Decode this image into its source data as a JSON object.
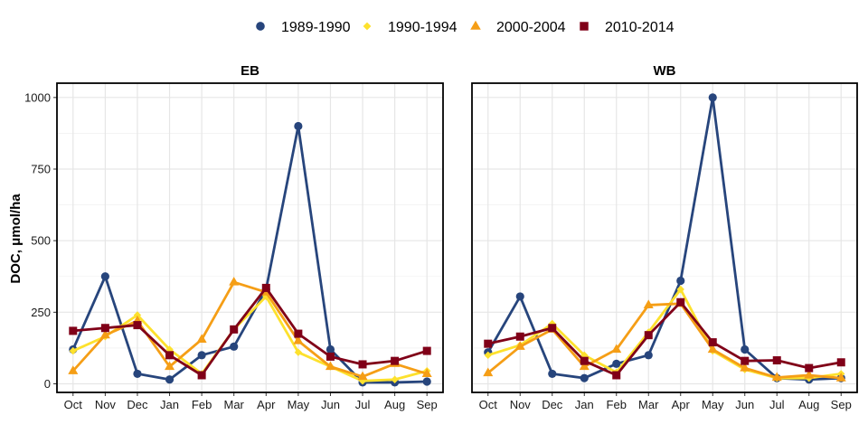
{
  "chart_data": {
    "type": "line",
    "ylabel": "DOC, μmol/ha",
    "xlabel": "",
    "categories": [
      "Oct",
      "Nov",
      "Dec",
      "Jan",
      "Feb",
      "Mar",
      "Apr",
      "May",
      "Jun",
      "Jul",
      "Aug",
      "Sep"
    ],
    "ylim": [
      -30,
      1050
    ],
    "yticks": [
      0,
      250,
      500,
      750,
      1000
    ],
    "grid": true,
    "legend_position": "top",
    "legend": [
      {
        "name": "1989-1990",
        "color": "#27457c",
        "marker": "circle"
      },
      {
        "name": "1990-1994",
        "color": "#fde12d",
        "marker": "diamond"
      },
      {
        "name": "2000-2004",
        "color": "#f59e16",
        "marker": "triangle"
      },
      {
        "name": "2010-2014",
        "color": "#800018",
        "marker": "square"
      }
    ],
    "panels": [
      {
        "title": "EB",
        "series": [
          {
            "name": "1989-1990",
            "values": [
              120,
              375,
              35,
              15,
              100,
              130,
              330,
              900,
              120,
              5,
              5,
              8
            ]
          },
          {
            "name": "1990-1994",
            "values": [
              115,
              165,
              240,
              120,
              35,
              190,
              305,
              110,
              60,
              10,
              15,
              45
            ]
          },
          {
            "name": "2000-2004",
            "values": [
              45,
              170,
              220,
              60,
              155,
              355,
              320,
              150,
              60,
              25,
              70,
              35
            ]
          },
          {
            "name": "2010-2014",
            "values": [
              185,
              195,
              205,
              100,
              30,
              190,
              335,
              175,
              95,
              68,
              80,
              115
            ]
          }
        ]
      },
      {
        "title": "WB",
        "series": [
          {
            "name": "1989-1990",
            "values": [
              110,
              305,
              35,
              20,
              70,
              100,
              360,
              1000,
              120,
              20,
              15,
              20
            ]
          },
          {
            "name": "1990-1994",
            "values": [
              100,
              135,
              210,
              100,
              40,
              180,
              330,
              115,
              50,
              20,
              20,
              35
            ]
          },
          {
            "name": "2000-2004",
            "values": [
              38,
              130,
              190,
              60,
              120,
              275,
              280,
              120,
              55,
              22,
              30,
              20
            ]
          },
          {
            "name": "2010-2014",
            "values": [
              140,
              165,
              195,
              80,
              30,
              170,
              285,
              145,
              80,
              82,
              55,
              75
            ]
          }
        ]
      }
    ]
  }
}
